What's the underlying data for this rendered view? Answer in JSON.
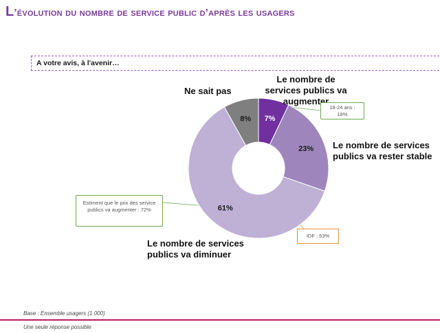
{
  "title": {
    "first": "L",
    "rest": "’évolution du nombre de service public d’après les usagers"
  },
  "question": "A votre avis, à l'avenir…",
  "chart_data": {
    "type": "pie",
    "variant": "donut",
    "title": "",
    "categories": [
      "Le nombre de services publics va augmenter",
      "Le nombre de services publics va rester stable",
      "Le nombre de services publics va diminuer",
      "Ne sait pas"
    ],
    "values": [
      7,
      23,
      61,
      8
    ],
    "value_labels": [
      "7%",
      "23%",
      "61%",
      "8%"
    ],
    "colors": [
      "#7030a0",
      "#9e86bd",
      "#bfb0d6",
      "#7f7f7f"
    ],
    "annotations": [
      {
        "target": "Le nombre de services publics va augmenter",
        "text": "18-24 ans : 18%"
      },
      {
        "target": "Le nombre de services publics va diminuer",
        "text": "Estiment que le prix des service publics va augmenter : 72%"
      },
      {
        "target": "Le nombre de services publics va diminuer",
        "text": "IDF : 53%"
      }
    ]
  },
  "labels": {
    "augmenter": "Le nombre de services publics va augmenter",
    "stable": "Le nombre de services publics va rester stable",
    "diminuer": "Le nombre de services publics va diminuer",
    "nsp": "Ne sait pas"
  },
  "callouts": {
    "age": "18-24 ans : 18%",
    "prix": "Estiment que le prix des service publics va augmenter : 72%",
    "idf": "IDF : 53%"
  },
  "footer": {
    "base": "Base : Ensemble usagers (1 000)",
    "note": "Une seule réponse possible"
  },
  "colors": {
    "title": "#7b3a9c",
    "footer_line": "#c2185b",
    "callout_green": "#6aa84f",
    "callout_orange": "#e69138"
  }
}
